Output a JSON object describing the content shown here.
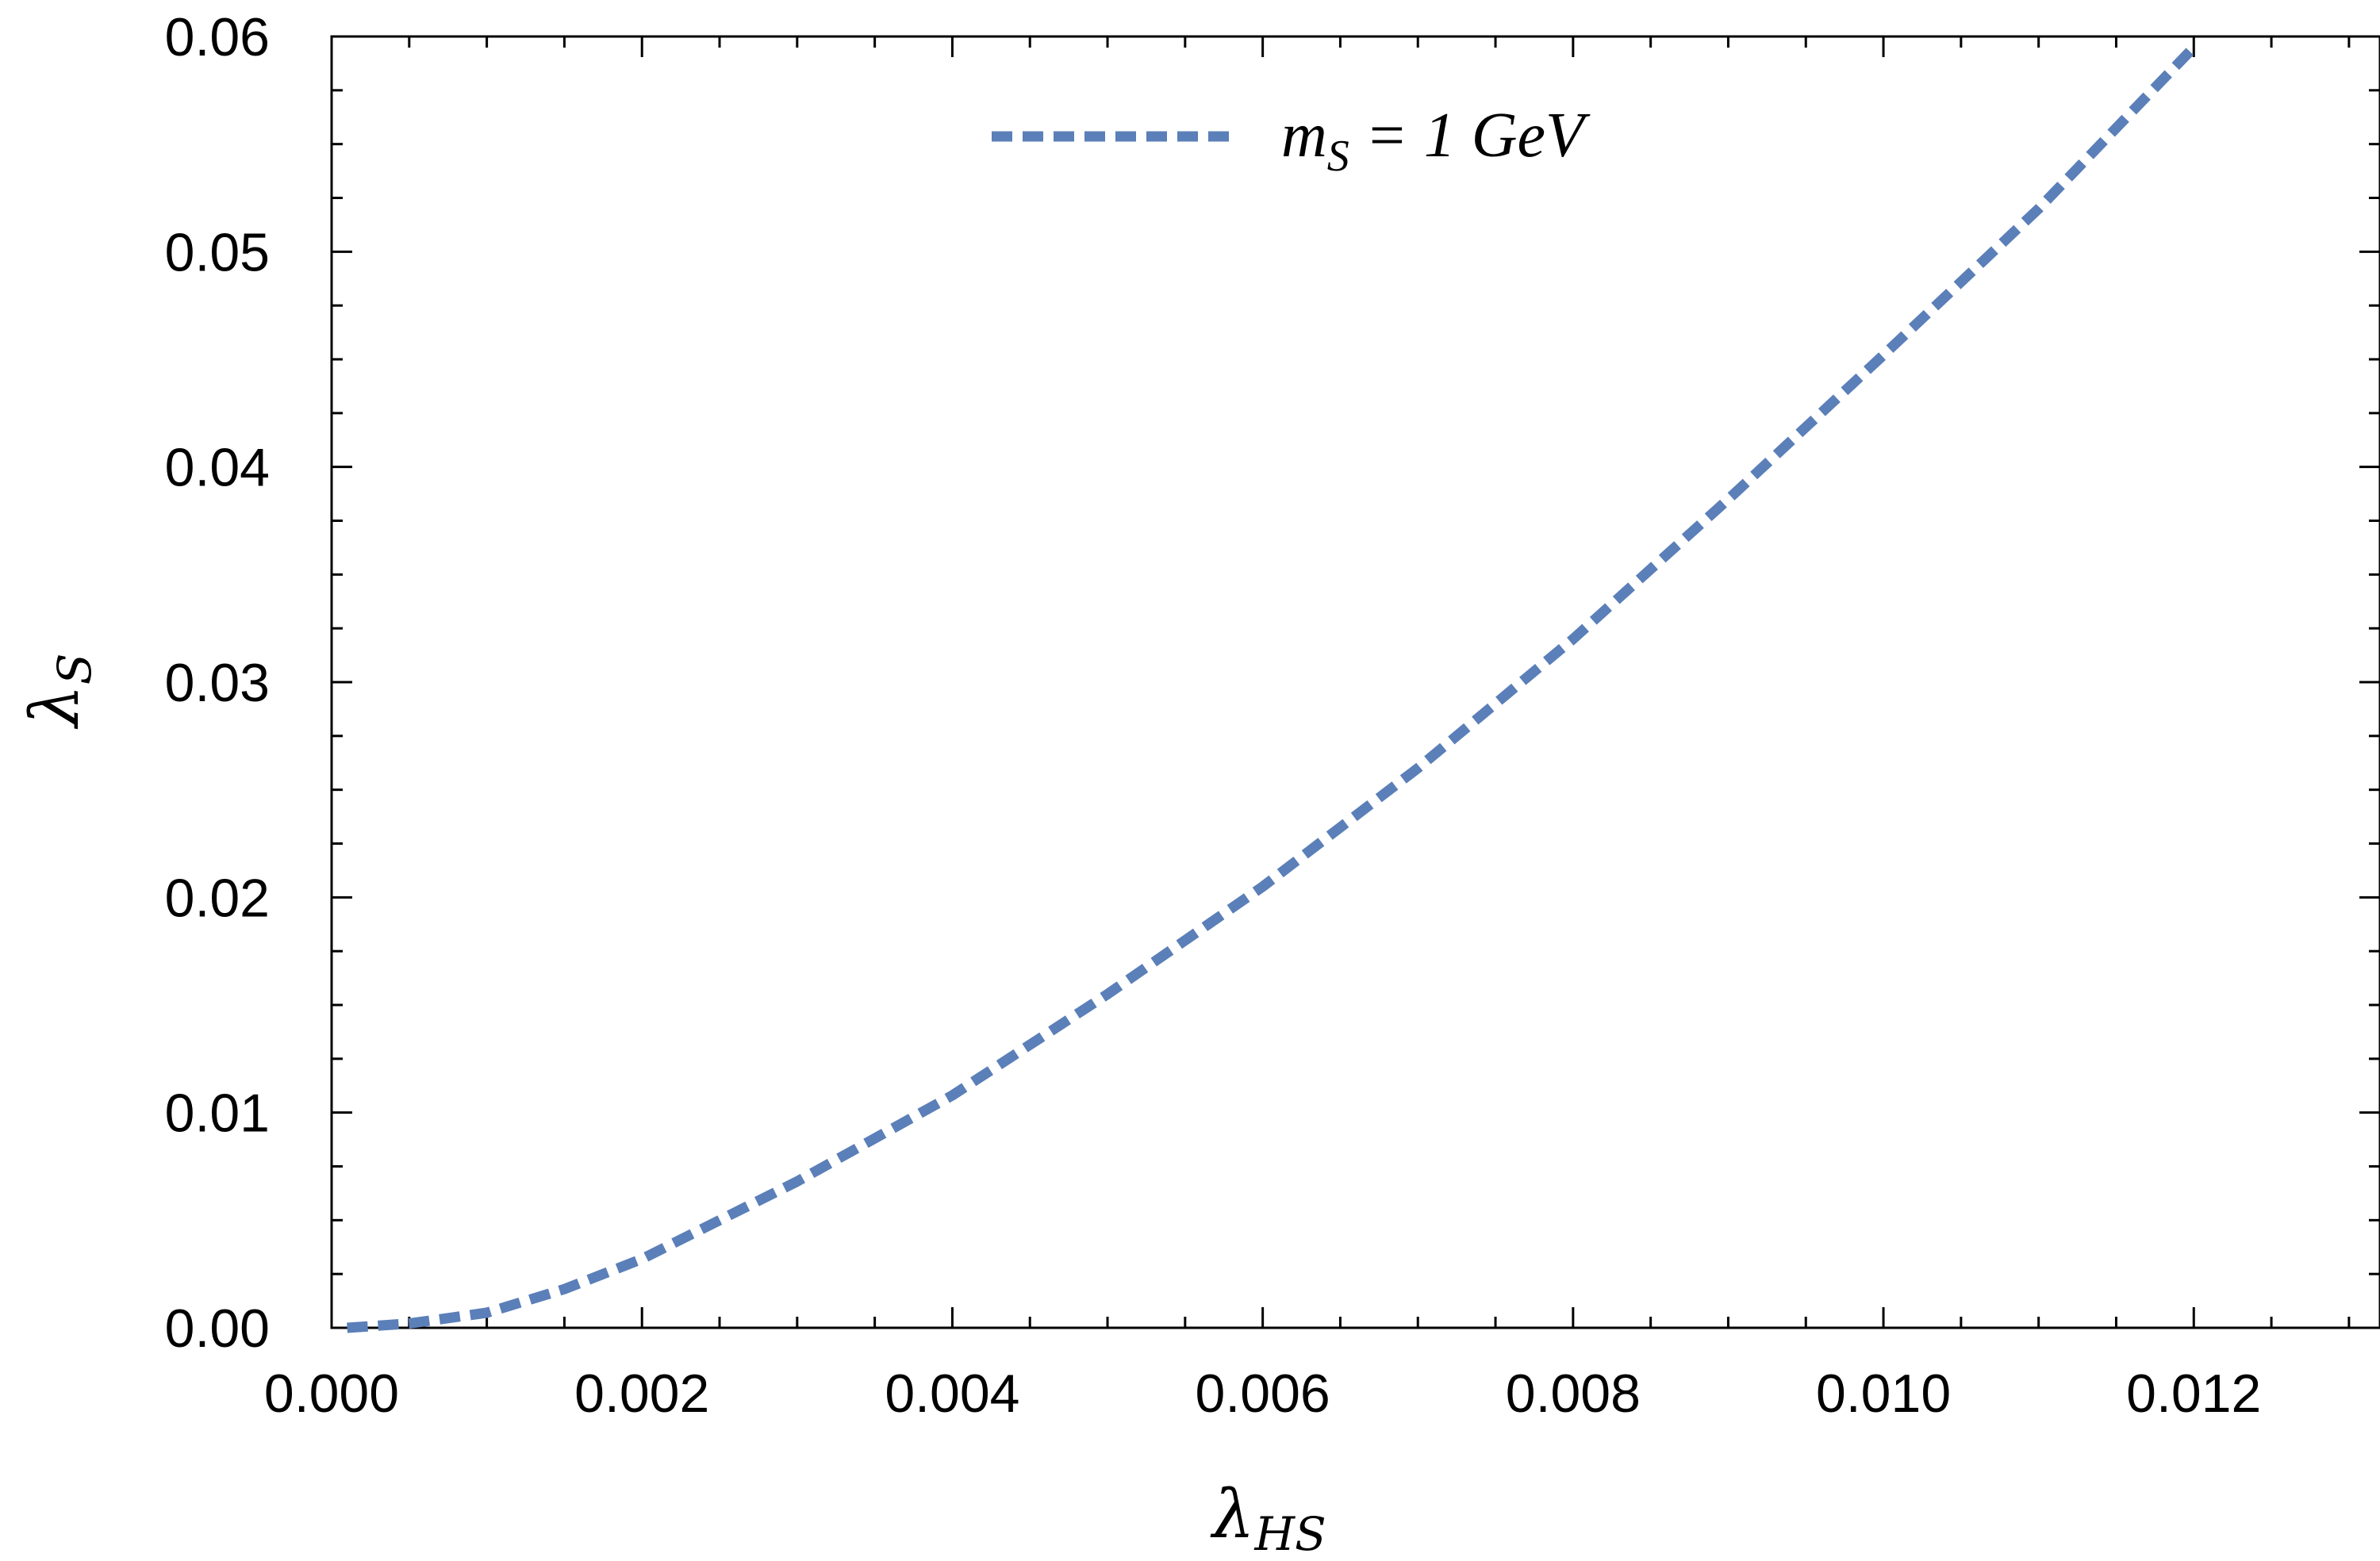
{
  "chart_data": {
    "type": "line",
    "title": "",
    "xlabel": {
      "main": "λ",
      "sub": "HS"
    },
    "ylabel": {
      "main": "λ",
      "sub": "S"
    },
    "xlim": [
      0.0,
      0.0132
    ],
    "ylim": [
      0.0,
      0.06
    ],
    "x_ticks": [
      "0.000",
      "0.002",
      "0.004",
      "0.006",
      "0.008",
      "0.010",
      "0.012"
    ],
    "y_ticks": [
      "0.00",
      "0.01",
      "0.02",
      "0.03",
      "0.04",
      "0.05",
      "0.06"
    ],
    "grid": false,
    "legend_position": "top-center",
    "series": [
      {
        "name_parts": {
          "m": "m",
          "sub": "S",
          "rest": " = 1 GeV"
        },
        "color": "#5b7fb8",
        "style": "dotted",
        "x": [
          0.0001,
          0.0005,
          0.001,
          0.0015,
          0.002,
          0.003,
          0.004,
          0.005,
          0.006,
          0.007,
          0.008,
          0.009,
          0.01,
          0.011,
          0.012
        ],
        "y": [
          0.0,
          0.0002,
          0.0007,
          0.0018,
          0.0032,
          0.0068,
          0.0108,
          0.0155,
          0.0205,
          0.026,
          0.032,
          0.0385,
          0.0452,
          0.052,
          0.0595
        ]
      }
    ]
  }
}
